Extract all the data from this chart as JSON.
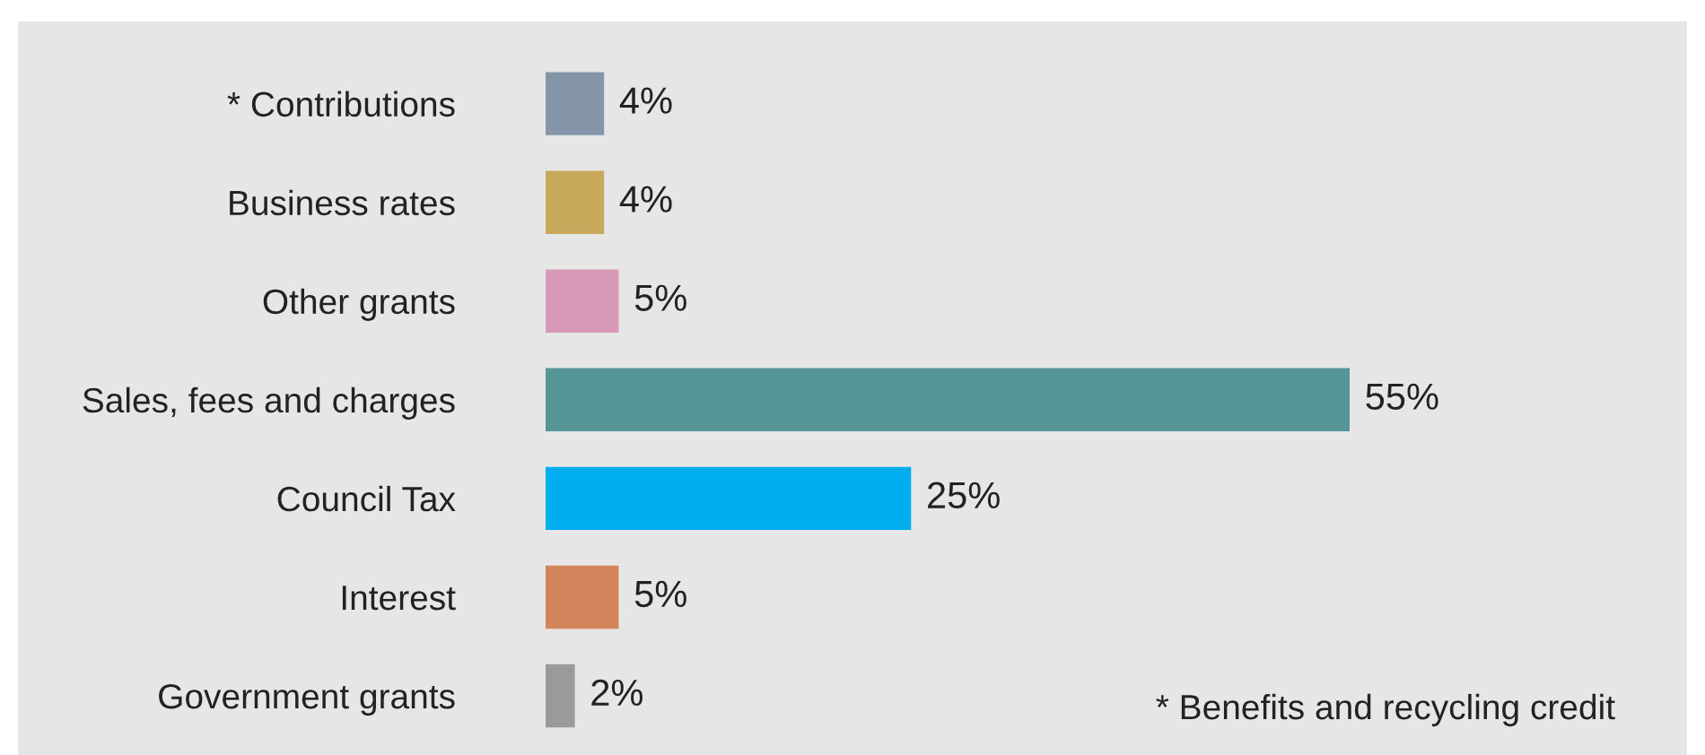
{
  "chart_data": {
    "type": "bar",
    "orientation": "horizontal",
    "categories": [
      "* Contributions",
      "Business rates",
      "Other grants",
      "Sales, fees and charges",
      "Council Tax",
      "Interest",
      "Government grants"
    ],
    "values": [
      4,
      4,
      5,
      55,
      25,
      5,
      2
    ],
    "colors": [
      "#8495a8",
      "#c8a95c",
      "#d89ab8",
      "#559595",
      "#00aeef",
      "#d4845a",
      "#9a9a9a"
    ],
    "value_labels": [
      "4%",
      "4%",
      "5%",
      "55%",
      "25%",
      "5%",
      "2%"
    ],
    "annotations": [
      "* Benefits and recycling credit"
    ],
    "tick_labels": "y",
    "grid": false,
    "legend": false
  }
}
